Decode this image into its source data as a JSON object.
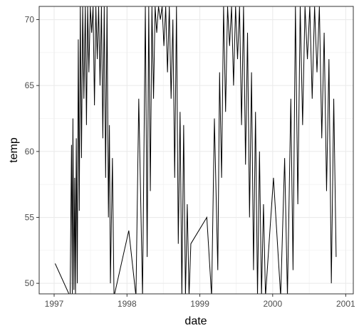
{
  "chart_data": {
    "type": "line",
    "xlabel": "date",
    "ylabel": "temp",
    "x_ticks": [
      "1997",
      "1998",
      "1999",
      "2000",
      "2001"
    ],
    "y_ticks": [
      50,
      55,
      60,
      65,
      70
    ],
    "xlim": [
      "1996-10-18",
      "2001-02-08"
    ],
    "ylim": [
      49.2,
      71.0
    ],
    "grid": true,
    "theme": "bw",
    "line_color": "#000000",
    "series": [
      {
        "dates": [
          "1997-01-06",
          "1997-03-22",
          "1997-03-29",
          "1997-04-02",
          "1997-04-05",
          "1997-04-10",
          "1997-04-14",
          "1997-04-18",
          "1997-04-22",
          "1997-04-27",
          "1997-05-02",
          "1997-05-07",
          "1997-05-12",
          "1997-05-18",
          "1997-05-24",
          "1997-05-30",
          "1997-06-06",
          "1997-06-12",
          "1997-06-18",
          "1997-06-24",
          "1997-07-01",
          "1997-07-08",
          "1997-07-15",
          "1997-07-22",
          "1997-07-29",
          "1997-08-05",
          "1997-08-12",
          "1997-08-19",
          "1997-08-26",
          "1997-09-02",
          "1997-09-09",
          "1997-09-16",
          "1997-09-23",
          "1997-09-30",
          "1997-10-05",
          "1997-10-10",
          "1997-10-20",
          "1997-10-28",
          "1998-01-10",
          "1998-02-15",
          "1998-03-01",
          "1998-03-20",
          "1998-04-03",
          "1998-04-12",
          "1998-04-20",
          "1998-04-28",
          "1998-05-06",
          "1998-05-14",
          "1998-05-22",
          "1998-05-30",
          "1998-06-08",
          "1998-06-17",
          "1998-06-26",
          "1998-07-05",
          "1998-07-14",
          "1998-07-23",
          "1998-08-01",
          "1998-08-10",
          "1998-08-19",
          "1998-08-28",
          "1998-09-06",
          "1998-09-15",
          "1998-09-24",
          "1998-10-03",
          "1998-10-12",
          "1998-10-21",
          "1998-10-30",
          "1998-11-08",
          "1998-11-17",
          "1999-02-05",
          "1999-03-01",
          "1999-03-15",
          "1999-04-01",
          "1999-04-10",
          "1999-04-20",
          "1999-04-30",
          "1999-05-10",
          "1999-05-20",
          "1999-05-30",
          "1999-06-09",
          "1999-06-19",
          "1999-06-29",
          "1999-07-09",
          "1999-07-19",
          "1999-07-29",
          "1999-08-08",
          "1999-08-18",
          "1999-08-28",
          "1999-09-07",
          "1999-09-17",
          "1999-09-27",
          "1999-10-07",
          "1999-10-17",
          "1999-10-27",
          "1999-11-06",
          "1999-11-16",
          "1999-11-26",
          "2000-01-05",
          "2000-02-10",
          "2000-03-01",
          "2000-03-15",
          "2000-04-01",
          "2000-04-12",
          "2000-04-24",
          "2000-05-06",
          "2000-05-18",
          "2000-05-30",
          "2000-06-11",
          "2000-06-23",
          "2000-07-05",
          "2000-07-17",
          "2000-07-29",
          "2000-08-10",
          "2000-08-22",
          "2000-09-03",
          "2000-09-15",
          "2000-09-27",
          "2000-10-09",
          "2000-10-21",
          "2000-11-02",
          "2000-11-14"
        ],
        "values": [
          51.5,
          49.0,
          60.5,
          49.0,
          62.5,
          49.5,
          58.0,
          49.0,
          61.0,
          50.0,
          68.5,
          55.5,
          71.0,
          59.5,
          71.0,
          64.0,
          71.0,
          62.0,
          71.0,
          66.0,
          71.0,
          69.0,
          71.0,
          63.5,
          71.0,
          67.0,
          71.0,
          65.0,
          71.0,
          61.0,
          71.0,
          58.0,
          71.0,
          55.0,
          62.0,
          50.0,
          59.5,
          49.0,
          54.0,
          49.0,
          64.0,
          49.0,
          71.0,
          52.0,
          71.0,
          57.0,
          71.0,
          64.0,
          71.0,
          69.0,
          71.0,
          70.0,
          71.0,
          68.0,
          71.0,
          66.0,
          71.0,
          64.0,
          70.0,
          58.0,
          71.0,
          53.0,
          63.0,
          49.0,
          62.0,
          49.0,
          56.0,
          49.0,
          53.0,
          55.0,
          49.0,
          62.5,
          51.0,
          66.0,
          58.0,
          71.0,
          63.0,
          71.0,
          68.0,
          71.0,
          65.0,
          71.0,
          67.0,
          71.0,
          62.0,
          71.0,
          59.0,
          69.0,
          55.0,
          66.0,
          51.0,
          63.0,
          49.0,
          60.0,
          49.0,
          56.0,
          49.0,
          58.0,
          49.0,
          59.5,
          49.0,
          64.0,
          51.0,
          71.0,
          56.0,
          71.0,
          62.0,
          71.0,
          67.0,
          71.0,
          64.0,
          71.0,
          66.0,
          71.0,
          61.0,
          69.0,
          57.0,
          67.0,
          50.0,
          64.0,
          52.0
        ]
      }
    ]
  }
}
